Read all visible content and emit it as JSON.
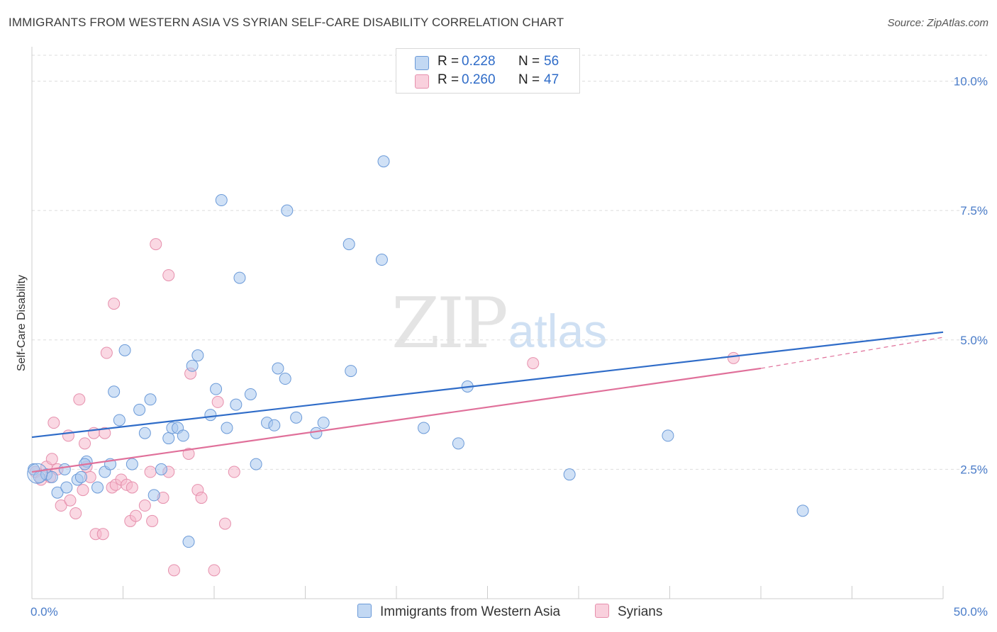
{
  "title": "IMMIGRANTS FROM WESTERN ASIA VS SYRIAN SELF-CARE DISABILITY CORRELATION CHART",
  "source": "Source: ZipAtlas.com",
  "watermark": {
    "zip": "ZIP",
    "atlas": "atlas"
  },
  "legend": {
    "series1": {
      "r_label": "R =",
      "r_value": "0.228",
      "n_label": "N =",
      "n_value": "56"
    },
    "series2": {
      "r_label": "R =",
      "r_value": "0.260",
      "n_label": "N =",
      "n_value": "47"
    }
  },
  "colors": {
    "blue_fill": "#a9c8ef",
    "blue_stroke": "#6b9ad8",
    "blue_line": "#2f6cc8",
    "pink_fill": "#f5b8cc",
    "pink_stroke": "#e690ad",
    "pink_line": "#e0709a",
    "tick_text": "#4a7cc9",
    "grid": "#dddddd"
  },
  "chart_data": {
    "type": "scatter",
    "title": "IMMIGRANTS FROM WESTERN ASIA VS SYRIAN SELF-CARE DISABILITY CORRELATION CHART",
    "xlabel": "",
    "ylabel": "Self-Care Disability",
    "xlim": [
      0,
      50
    ],
    "ylim": [
      0,
      10.5
    ],
    "x_tick_labels": [
      "0.0%",
      "50.0%"
    ],
    "y_ticks": [
      2.5,
      5.0,
      7.5,
      10.0
    ],
    "y_tick_labels": [
      "2.5%",
      "5.0%",
      "7.5%",
      "10.0%"
    ],
    "grid": "horizontal dashed",
    "series": [
      {
        "name": "Immigrants from Western Asia",
        "color": "#a9c8ef",
        "points": [
          [
            0.1,
            2.5
          ],
          [
            0.4,
            2.35
          ],
          [
            0.8,
            2.4
          ],
          [
            1.1,
            2.35
          ],
          [
            1.4,
            2.05
          ],
          [
            1.9,
            2.15
          ],
          [
            1.8,
            2.5
          ],
          [
            2.5,
            2.3
          ],
          [
            2.7,
            2.35
          ],
          [
            3.0,
            2.65
          ],
          [
            2.9,
            2.6
          ],
          [
            3.6,
            2.15
          ],
          [
            4.0,
            2.45
          ],
          [
            4.3,
            2.6
          ],
          [
            4.5,
            4.0
          ],
          [
            4.8,
            3.45
          ],
          [
            5.1,
            4.8
          ],
          [
            5.5,
            2.6
          ],
          [
            5.9,
            3.65
          ],
          [
            6.2,
            3.2
          ],
          [
            6.5,
            3.85
          ],
          [
            6.7,
            2.0
          ],
          [
            7.1,
            2.5
          ],
          [
            7.5,
            3.1
          ],
          [
            7.7,
            3.3
          ],
          [
            8.0,
            3.3
          ],
          [
            8.3,
            3.15
          ],
          [
            8.6,
            1.1
          ],
          [
            8.8,
            4.5
          ],
          [
            9.1,
            4.7
          ],
          [
            9.8,
            3.55
          ],
          [
            10.1,
            4.05
          ],
          [
            10.4,
            7.7
          ],
          [
            10.7,
            3.3
          ],
          [
            11.2,
            3.75
          ],
          [
            11.4,
            6.2
          ],
          [
            12.0,
            3.95
          ],
          [
            12.3,
            2.6
          ],
          [
            12.9,
            3.4
          ],
          [
            13.3,
            3.35
          ],
          [
            13.5,
            4.45
          ],
          [
            13.9,
            4.25
          ],
          [
            14.0,
            7.5
          ],
          [
            14.5,
            3.5
          ],
          [
            15.6,
            3.2
          ],
          [
            16.0,
            3.4
          ],
          [
            17.4,
            6.85
          ],
          [
            17.5,
            4.4
          ],
          [
            19.2,
            6.55
          ],
          [
            19.3,
            8.45
          ],
          [
            21.5,
            3.3
          ],
          [
            23.4,
            3.0
          ],
          [
            23.9,
            4.1
          ],
          [
            29.5,
            2.4
          ],
          [
            34.9,
            3.15
          ],
          [
            42.3,
            1.7
          ]
        ]
      },
      {
        "name": "Syrians",
        "color": "#f5b8cc",
        "points": [
          [
            0.2,
            2.45
          ],
          [
            0.5,
            2.3
          ],
          [
            0.8,
            2.55
          ],
          [
            1.0,
            2.35
          ],
          [
            1.1,
            2.7
          ],
          [
            1.2,
            3.4
          ],
          [
            1.4,
            2.5
          ],
          [
            1.6,
            1.8
          ],
          [
            2.0,
            3.15
          ],
          [
            2.1,
            1.9
          ],
          [
            2.4,
            1.65
          ],
          [
            2.6,
            3.85
          ],
          [
            2.8,
            2.1
          ],
          [
            2.9,
            3.0
          ],
          [
            3.0,
            2.55
          ],
          [
            3.2,
            2.35
          ],
          [
            3.4,
            3.2
          ],
          [
            3.5,
            1.25
          ],
          [
            3.9,
            1.25
          ],
          [
            4.0,
            3.2
          ],
          [
            4.1,
            4.75
          ],
          [
            4.4,
            2.15
          ],
          [
            4.5,
            5.7
          ],
          [
            4.6,
            2.2
          ],
          [
            4.9,
            2.3
          ],
          [
            5.2,
            2.2
          ],
          [
            5.4,
            1.5
          ],
          [
            5.5,
            2.15
          ],
          [
            5.7,
            1.6
          ],
          [
            6.2,
            1.8
          ],
          [
            6.5,
            2.45
          ],
          [
            6.6,
            1.5
          ],
          [
            6.8,
            6.85
          ],
          [
            7.2,
            1.95
          ],
          [
            7.5,
            2.45
          ],
          [
            7.5,
            6.25
          ],
          [
            7.8,
            0.55
          ],
          [
            8.6,
            2.8
          ],
          [
            8.7,
            4.35
          ],
          [
            9.1,
            2.1
          ],
          [
            9.3,
            1.95
          ],
          [
            10.0,
            0.55
          ],
          [
            10.2,
            3.8
          ],
          [
            10.6,
            1.45
          ],
          [
            11.1,
            2.45
          ],
          [
            27.5,
            4.55
          ],
          [
            38.5,
            4.65
          ]
        ]
      }
    ],
    "trendlines": [
      {
        "series": "Immigrants from Western Asia",
        "x": [
          0,
          50
        ],
        "y": [
          3.12,
          5.15
        ]
      },
      {
        "series": "Syrians",
        "x": [
          0,
          40
        ],
        "y": [
          2.45,
          4.45
        ],
        "dashed_extension": {
          "x": [
            40,
            50
          ],
          "y": [
            4.45,
            5.05
          ]
        }
      }
    ]
  },
  "bottom_legend": {
    "item1": "Immigrants from Western Asia",
    "item2": "Syrians"
  }
}
